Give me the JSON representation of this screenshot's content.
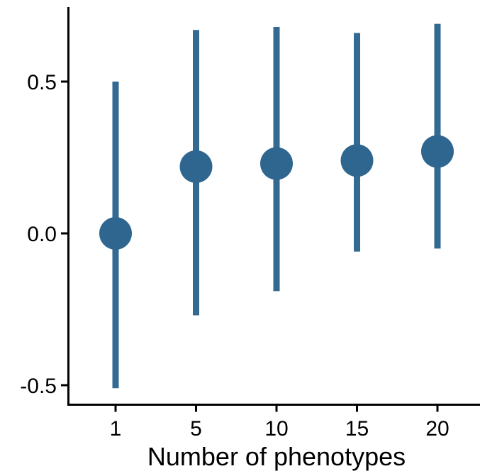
{
  "chart_data": {
    "type": "scatter",
    "title": "",
    "xlabel": "Number of phenotypes",
    "ylabel": "",
    "categories": [
      "1",
      "5",
      "10",
      "15",
      "20"
    ],
    "series": [
      {
        "points": [
          {
            "x": "1",
            "y": 0.0,
            "lower": -0.51,
            "upper": 0.5
          },
          {
            "x": "5",
            "y": 0.22,
            "lower": -0.27,
            "upper": 0.67
          },
          {
            "x": "10",
            "y": 0.23,
            "lower": -0.19,
            "upper": 0.68
          },
          {
            "x": "15",
            "y": 0.24,
            "lower": -0.06,
            "upper": 0.66
          },
          {
            "x": "20",
            "y": 0.27,
            "lower": -0.05,
            "upper": 0.69
          }
        ]
      }
    ],
    "yticks": [
      {
        "value": -0.5,
        "label": "-0.5"
      },
      {
        "value": 0.0,
        "label": "0.0"
      },
      {
        "value": 0.5,
        "label": "0.5"
      }
    ],
    "ylim": [
      -0.57,
      0.75
    ],
    "grid": false,
    "colors": {
      "marker": "#2e6690",
      "interval": "#336a92",
      "axis": "#000000"
    }
  }
}
